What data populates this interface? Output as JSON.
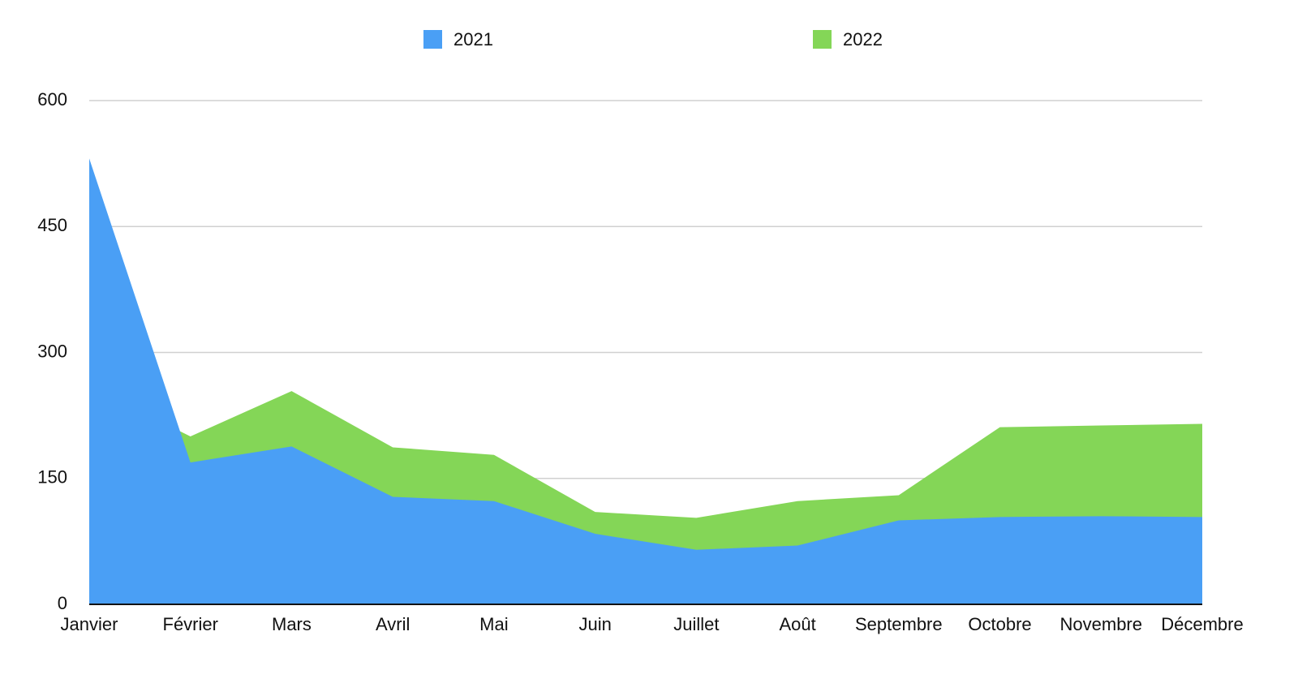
{
  "chart_data": {
    "type": "area",
    "categories": [
      "Janvier",
      "Février",
      "Mars",
      "Avril",
      "Mai",
      "Juin",
      "Juillet",
      "Août",
      "Septembre",
      "Octobre",
      "Novembre",
      "Décembre"
    ],
    "series": [
      {
        "name": "2021",
        "color": "#4a9ff5",
        "values": [
          531,
          169,
          188,
          128,
          123,
          84,
          65,
          70,
          100,
          104,
          105,
          104
        ]
      },
      {
        "name": "2022",
        "color": "#84d657",
        "values": [
          260,
          200,
          254,
          187,
          178,
          110,
          103,
          123,
          130,
          211,
          213,
          215
        ]
      }
    ],
    "ylim": [
      0,
      600
    ],
    "yticks": [
      0,
      150,
      300,
      450,
      600
    ],
    "grid": true,
    "legend": "top"
  }
}
